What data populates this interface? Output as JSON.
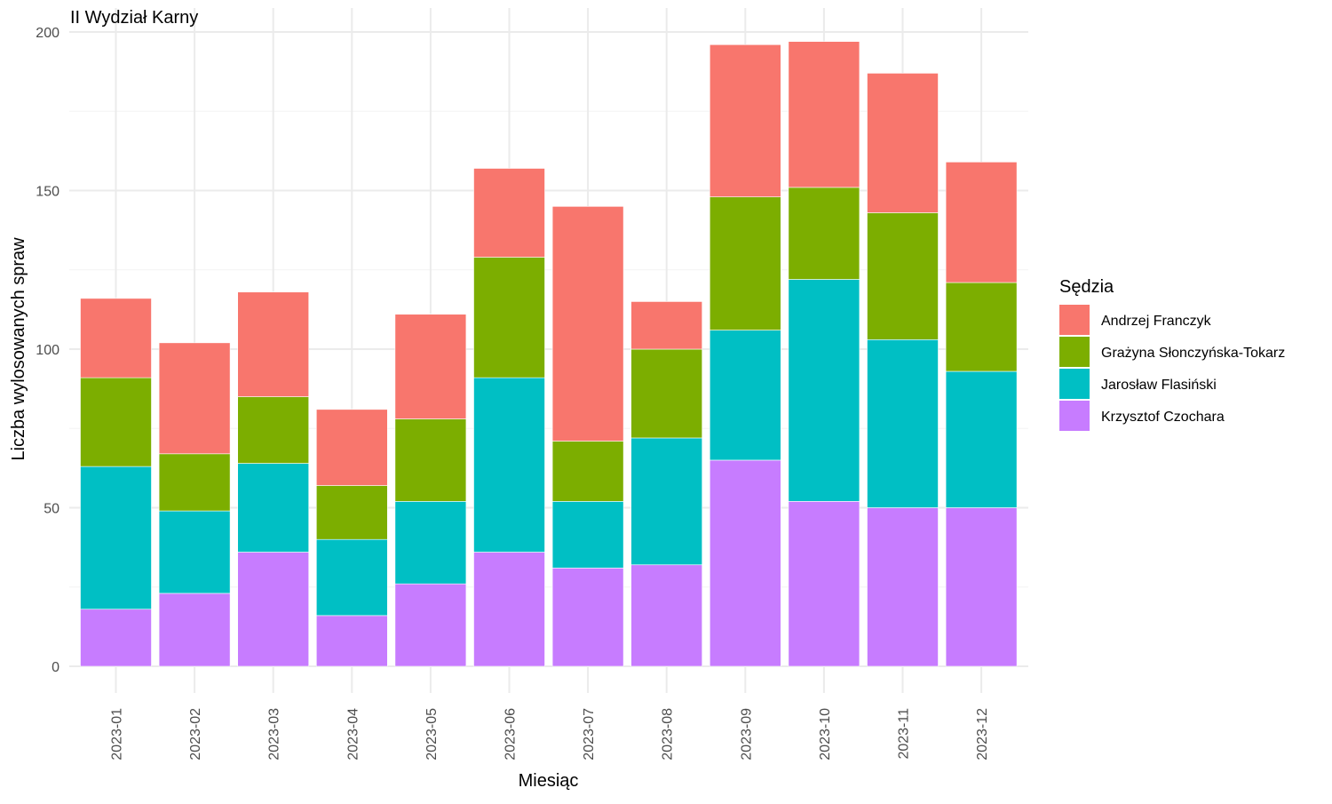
{
  "chart_data": {
    "type": "bar",
    "stacked": true,
    "title": "II Wydział Karny",
    "xlabel": "Miesiąc",
    "ylabel": "Liczba wylosowanych spraw",
    "ylim": [
      0,
      200
    ],
    "yticks": [
      0,
      50,
      100,
      150,
      200
    ],
    "grid": true,
    "legend_title": "Sędzia",
    "legend_position": "right",
    "categories": [
      "2023-01",
      "2023-02",
      "2023-03",
      "2023-04",
      "2023-05",
      "2023-06",
      "2023-07",
      "2023-08",
      "2023-09",
      "2023-10",
      "2023-11",
      "2023-12"
    ],
    "series": [
      {
        "name": "Krzysztof Czochara",
        "color": "#C77CFF",
        "values": [
          18,
          23,
          36,
          16,
          26,
          36,
          31,
          32,
          65,
          52,
          50,
          50
        ]
      },
      {
        "name": "Jarosław Flasiński",
        "color": "#00BFC4",
        "values": [
          45,
          26,
          28,
          24,
          26,
          55,
          21,
          40,
          41,
          70,
          53,
          43
        ]
      },
      {
        "name": "Grażyna Słonczyńska-Tokarz",
        "color": "#7CAE00",
        "values": [
          28,
          18,
          21,
          17,
          26,
          38,
          19,
          28,
          42,
          29,
          40,
          28
        ]
      },
      {
        "name": "Andrzej Franczyk",
        "color": "#F8766D",
        "values": [
          25,
          35,
          33,
          24,
          33,
          28,
          74,
          15,
          48,
          46,
          44,
          38
        ]
      }
    ],
    "legend_order": [
      "Andrzej Franczyk",
      "Grażyna Słonczyńska-Tokarz",
      "Jarosław Flasiński",
      "Krzysztof Czochara"
    ]
  }
}
